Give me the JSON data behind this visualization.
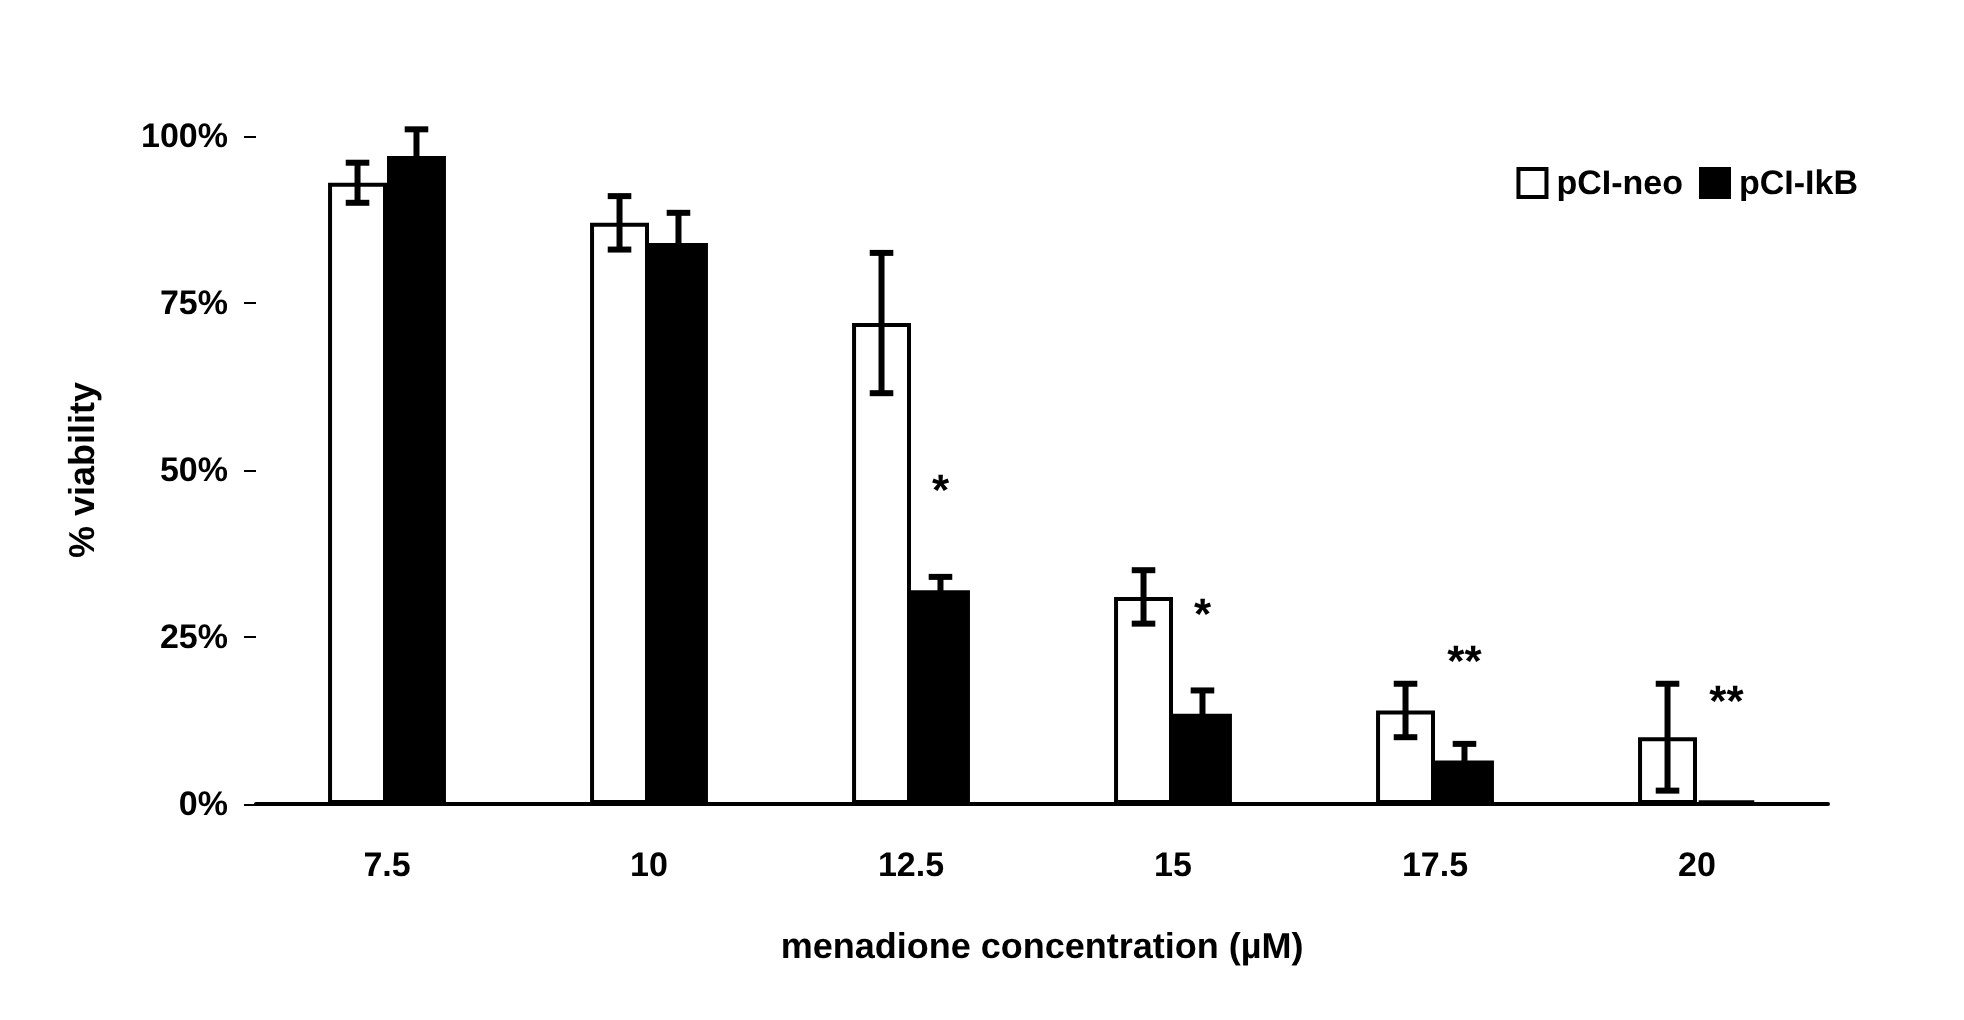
{
  "chart_data": {
    "type": "bar",
    "xlabel": "menadione concentration (µM)",
    "ylabel": "% viability",
    "categories": [
      "7.5",
      "10",
      "12.5",
      "15",
      "17.5",
      "20"
    ],
    "series": [
      {
        "name": "pCI-neo",
        "color": "#ffffff",
        "values": [
          93,
          87,
          72,
          31,
          14,
          10
        ],
        "errors": [
          3,
          4,
          10.5,
          4,
          4,
          8
        ]
      },
      {
        "name": "pCI-IkB",
        "color": "#000000",
        "values": [
          97,
          84,
          32,
          13.5,
          6.5,
          0.5
        ],
        "errors": [
          4,
          4.5,
          2,
          3.5,
          2.5,
          null
        ]
      }
    ],
    "ylim": [
      0,
      100
    ],
    "yticks": [
      {
        "value": 0,
        "label": "0%"
      },
      {
        "value": 25,
        "label": "25%"
      },
      {
        "value": 50,
        "label": "50%"
      },
      {
        "value": 75,
        "label": "75%"
      },
      {
        "value": 100,
        "label": "100%"
      }
    ],
    "annotations": [
      {
        "text": "*",
        "x": "12.5",
        "y": 32
      },
      {
        "text": "*",
        "x": "15",
        "y": 13.5
      },
      {
        "text": "**",
        "x": "17.5",
        "y": 6.5
      },
      {
        "text": "**",
        "x": "20",
        "y": 0.5
      }
    ],
    "legend": "top right",
    "grid": false
  }
}
